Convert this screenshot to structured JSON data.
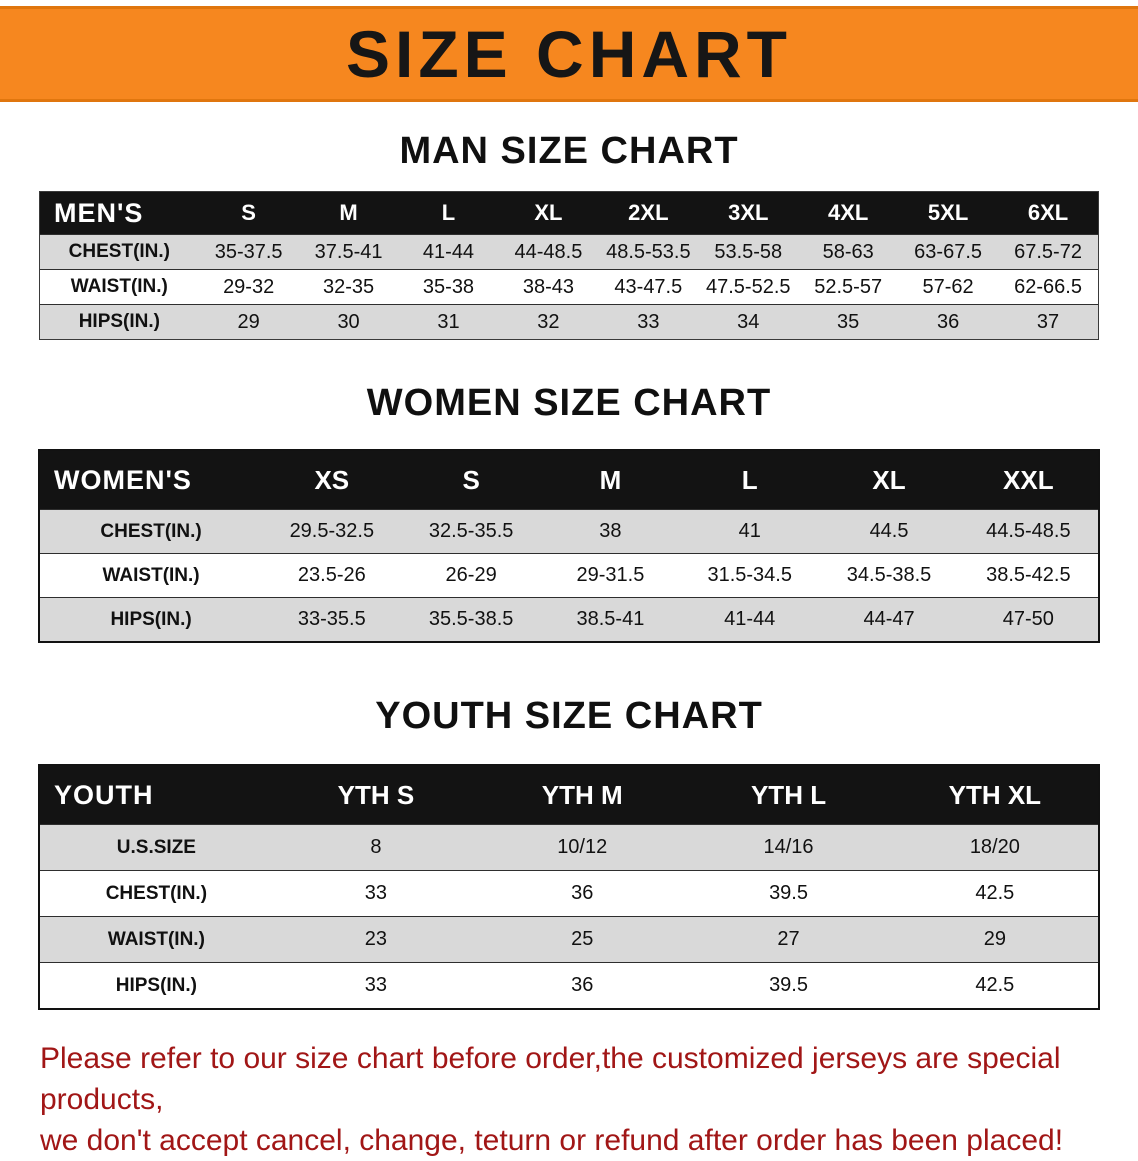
{
  "banner": {
    "title": "SIZE CHART"
  },
  "men": {
    "heading": "MAN SIZE CHART",
    "header": [
      "MEN'S",
      "S",
      "M",
      "L",
      "XL",
      "2XL",
      "3XL",
      "4XL",
      "5XL",
      "6XL"
    ],
    "rows": [
      [
        "CHEST(IN.)",
        "35-37.5",
        "37.5-41",
        "41-44",
        "44-48.5",
        "48.5-53.5",
        "53.5-58",
        "58-63",
        "63-67.5",
        "67.5-72"
      ],
      [
        "WAIST(IN.)",
        "29-32",
        "32-35",
        "35-38",
        "38-43",
        "43-47.5",
        "47.5-52.5",
        "52.5-57",
        "57-62",
        "62-66.5"
      ],
      [
        "HIPS(IN.)",
        "29",
        "30",
        "31",
        "32",
        "33",
        "34",
        "35",
        "36",
        "37"
      ]
    ]
  },
  "women": {
    "heading": "WOMEN SIZE CHART",
    "header": [
      "WOMEN'S",
      "XS",
      "S",
      "M",
      "L",
      "XL",
      "XXL"
    ],
    "rows": [
      [
        "CHEST(IN.)",
        "29.5-32.5",
        "32.5-35.5",
        "38",
        "41",
        "44.5",
        "44.5-48.5"
      ],
      [
        "WAIST(IN.)",
        "23.5-26",
        "26-29",
        "29-31.5",
        "31.5-34.5",
        "34.5-38.5",
        "38.5-42.5"
      ],
      [
        "HIPS(IN.)",
        "33-35.5",
        "35.5-38.5",
        "38.5-41",
        "41-44",
        "44-47",
        "47-50"
      ]
    ]
  },
  "youth": {
    "heading": "YOUTH SIZE CHART",
    "header": [
      "YOUTH",
      "YTH S",
      "YTH M",
      "YTH L",
      "YTH XL"
    ],
    "rows": [
      [
        "U.S.SIZE",
        "8",
        "10/12",
        "14/16",
        "18/20"
      ],
      [
        "CHEST(IN.)",
        "33",
        "36",
        "39.5",
        "42.5"
      ],
      [
        "WAIST(IN.)",
        "23",
        "25",
        "27",
        "29"
      ],
      [
        "HIPS(IN.)",
        "33",
        "36",
        "39.5",
        "42.5"
      ]
    ]
  },
  "footer": {
    "line1": "Please refer to our size chart before order,the customized jerseys are special products,",
    "line2": "we don't accept cancel, change, teturn or refund after order has been placed!"
  },
  "colors": {
    "banner_bg": "#f6871f",
    "table_header_bg": "#131313",
    "row_alt_bg": "#d9d9d9",
    "footer_text": "#a11616"
  }
}
